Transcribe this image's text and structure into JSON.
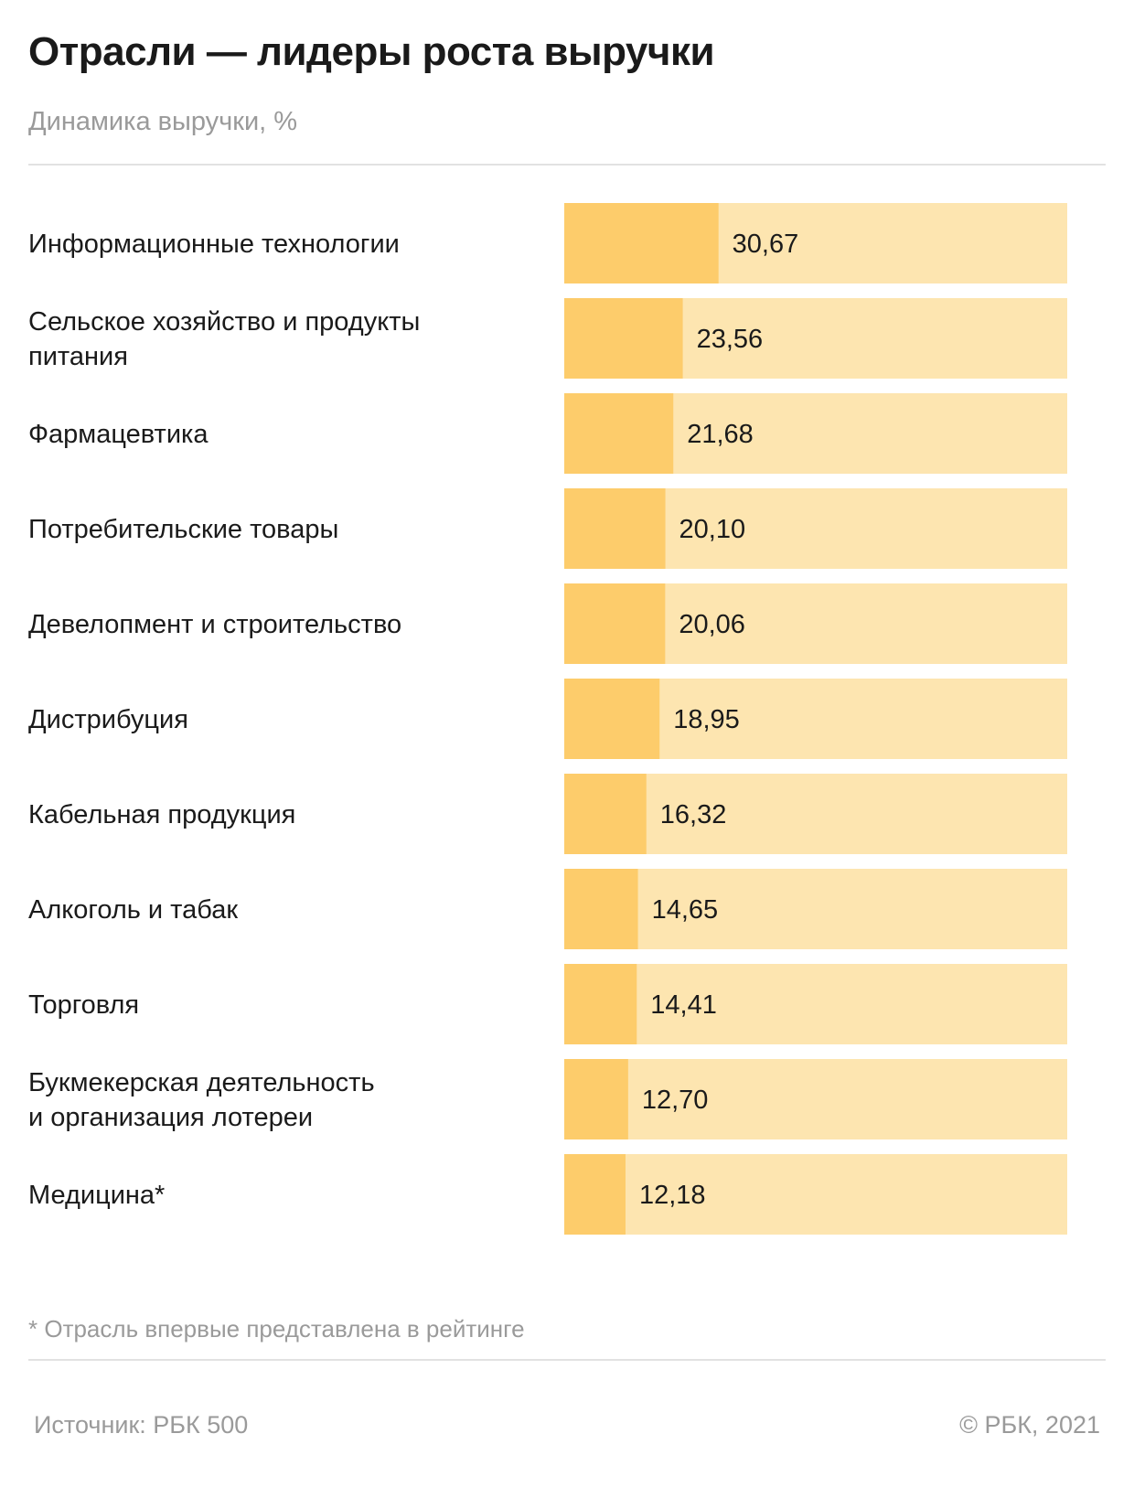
{
  "title": "Отрасли  — лидеры роста выручки",
  "subtitle": "Динамика выручки, %",
  "footnote": "* Отрасль впервые представлена в рейтинге",
  "source": "Источник: РБК 500",
  "copyright": "©  РБК, 2021",
  "colors": {
    "bar": "#fdcc6b",
    "track": "#fde5b0"
  },
  "chart_data": {
    "type": "bar",
    "orientation": "horizontal",
    "categories": [
      [
        "Информационные технологии"
      ],
      [
        "Сельское хозяйство и продукты",
        "питания"
      ],
      [
        "Фармацевтика"
      ],
      [
        "Потребительские товары"
      ],
      [
        "Девелопмент и строительство"
      ],
      [
        "Дистрибуция"
      ],
      [
        "Кабельная продукция"
      ],
      [
        "Алкоголь и табак"
      ],
      [
        "Торговля"
      ],
      [
        "Букмекерская деятельность",
        "и организация лотереи"
      ],
      [
        "Медицина*"
      ]
    ],
    "values": [
      30.67,
      23.56,
      21.68,
      20.1,
      20.06,
      18.95,
      16.32,
      14.65,
      14.41,
      12.7,
      12.18
    ],
    "value_labels": [
      "30,67",
      "23,56",
      "21,68",
      "20,10",
      "20,06",
      "18,95",
      "16,32",
      "14,65",
      "14,41",
      "12,70",
      "12,18"
    ],
    "xlim": [
      0,
      100
    ],
    "grid": false,
    "legend": "none"
  }
}
